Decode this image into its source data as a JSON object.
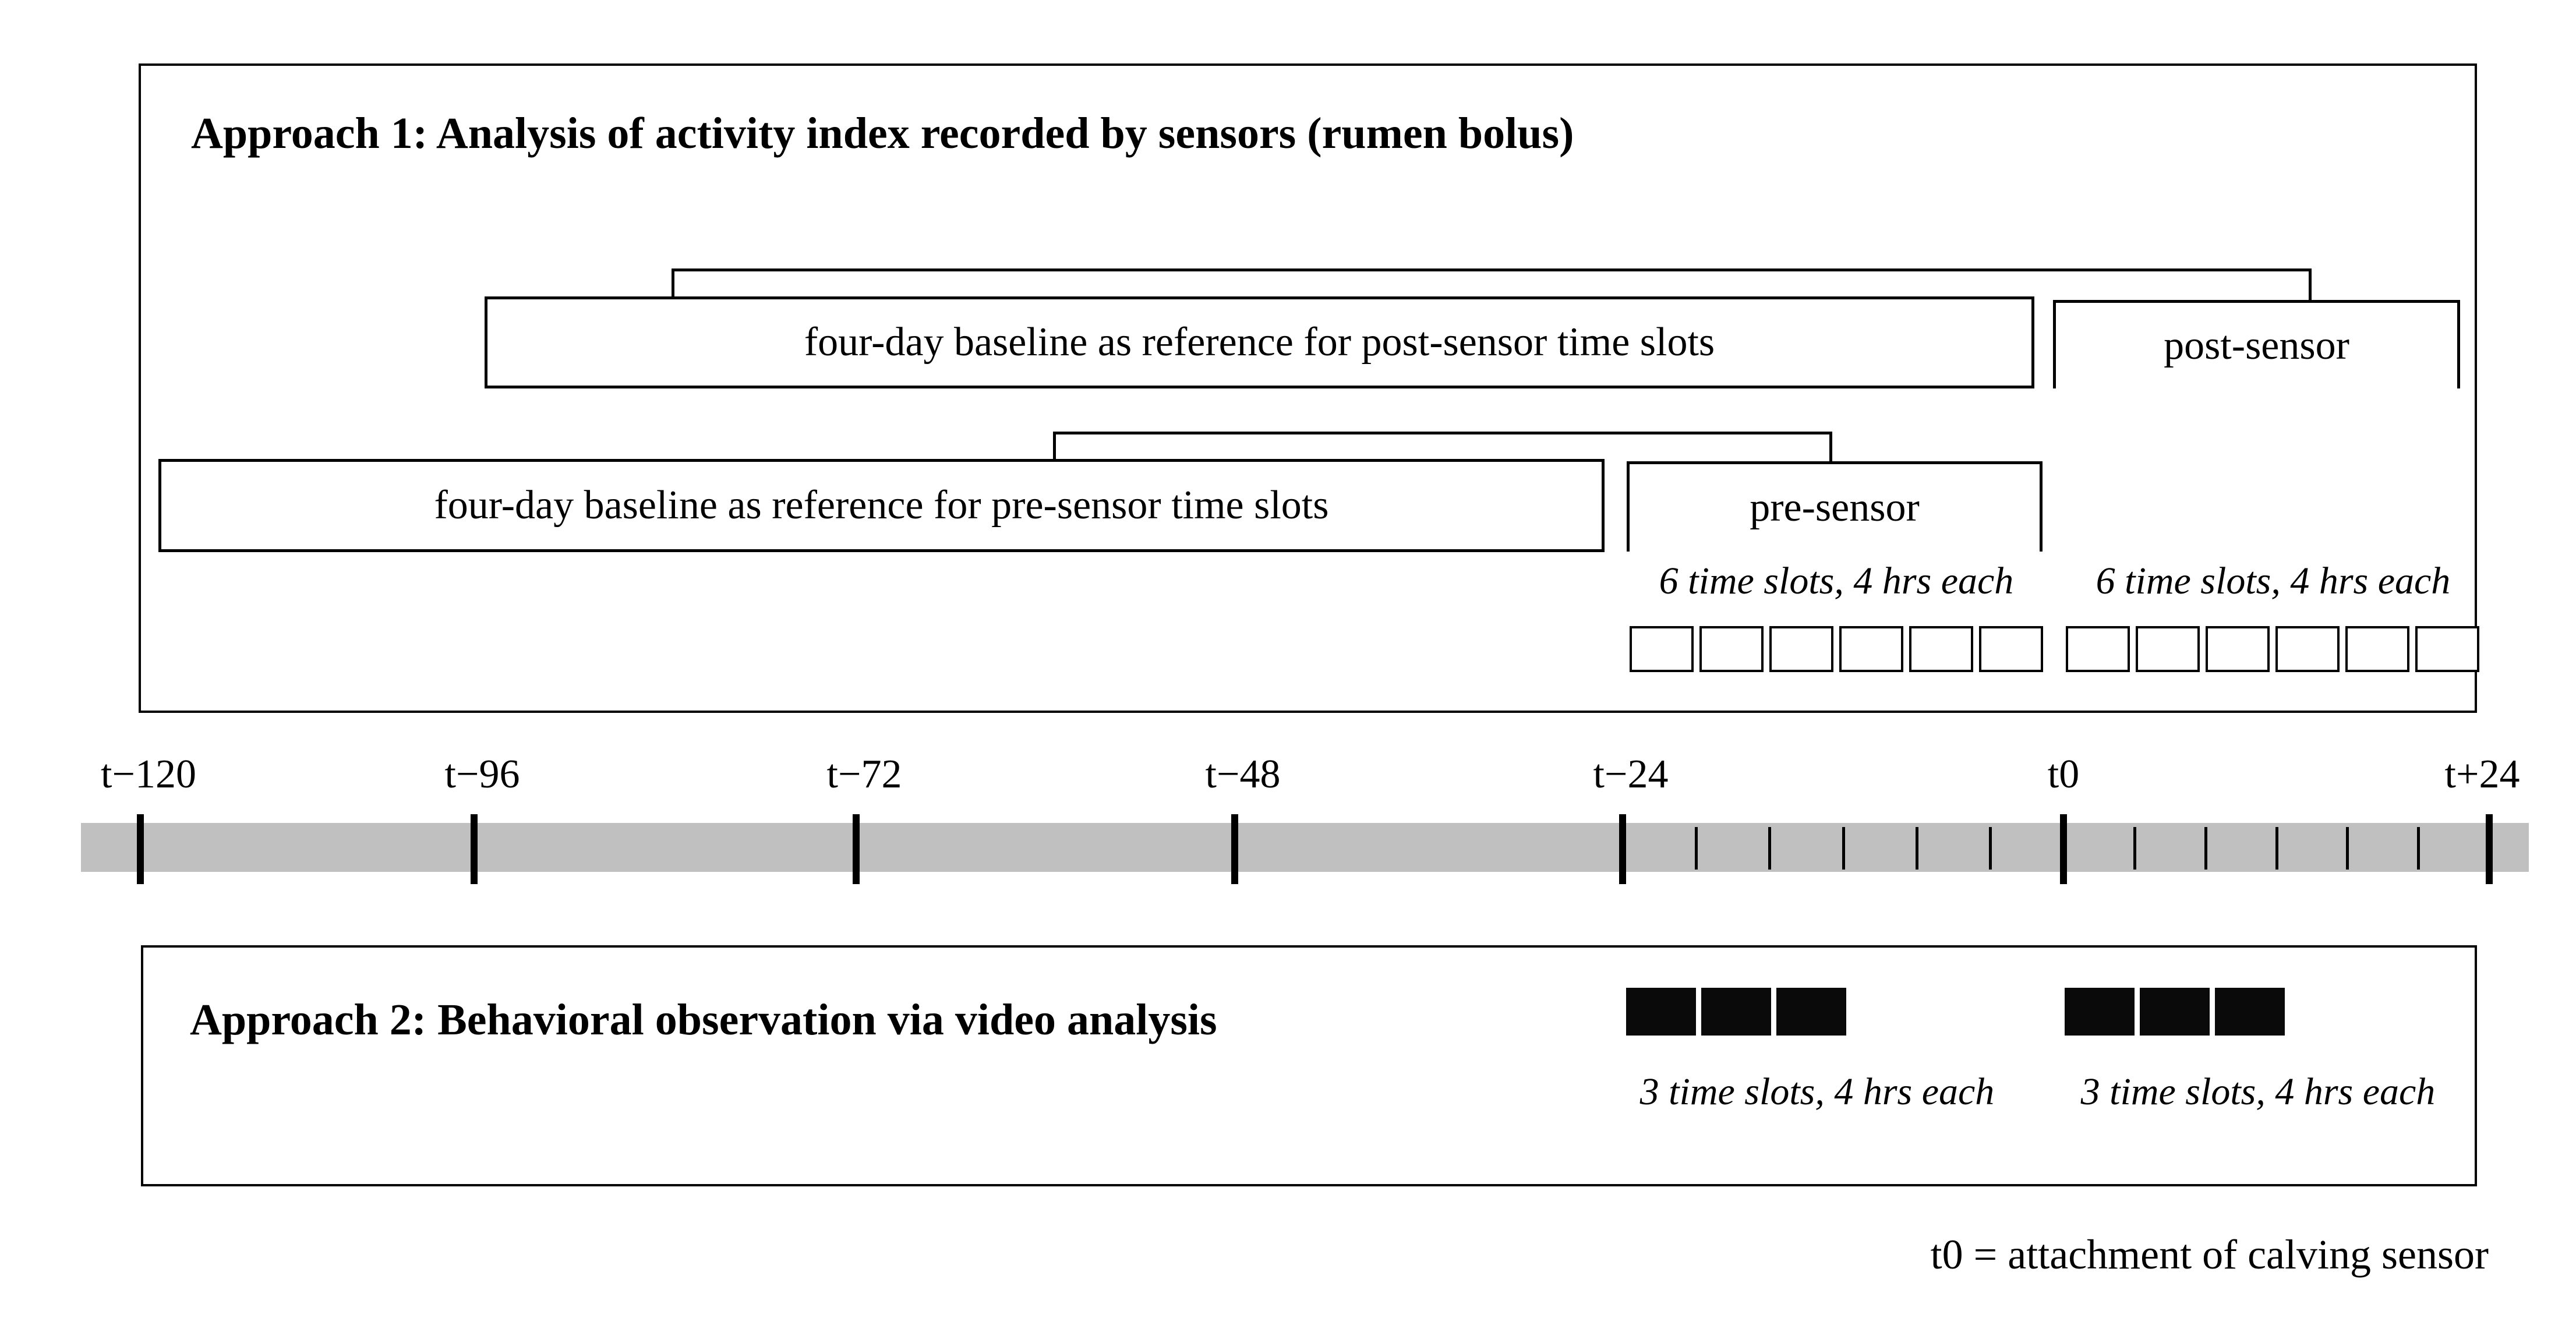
{
  "colors": {
    "background": "#ffffff",
    "line": "#000000",
    "timeline_bar": "#c0c0c0",
    "filled_slot": "#0a0a0a"
  },
  "approach1": {
    "title": "Approach 1: Analysis of activity index recorded by sensors (rumen bolus)",
    "post_row": {
      "baseline_label": "four-day baseline as reference for post-sensor time slots",
      "period_label": "post-sensor"
    },
    "pre_row": {
      "baseline_label": "four-day baseline as reference for pre-sensor time slots",
      "period_label": "pre-sensor"
    },
    "pre_slots": {
      "count": 6,
      "caption": "6 time slots, 4 hrs each"
    },
    "post_slots": {
      "count": 6,
      "caption": "6 time slots, 4 hrs each"
    }
  },
  "timeline": {
    "tick_labels": [
      "t−120",
      "t−96",
      "t−72",
      "t−48",
      "t−24",
      "t0",
      "t+24"
    ],
    "minor_ticks_per_interval": 5
  },
  "approach2": {
    "title": "Approach 2: Behavioral observation via video analysis",
    "pre_slots": {
      "count": 3,
      "caption": "3 time slots, 4 hrs each"
    },
    "post_slots": {
      "count": 3,
      "caption": "3 time slots, 4 hrs each"
    }
  },
  "footnote": "t0 = attachment of calving sensor"
}
